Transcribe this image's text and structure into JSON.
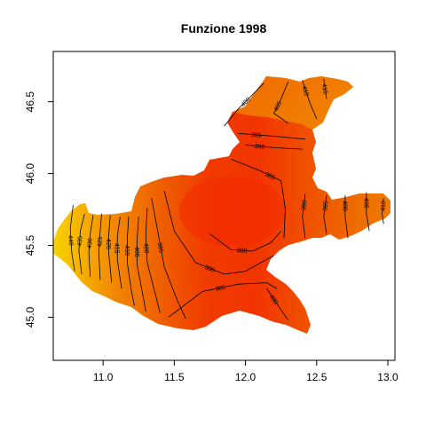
{
  "chart_data": {
    "type": "heatmap",
    "title": "Funzione 1998",
    "xlabel": "",
    "ylabel": "",
    "xlim": [
      10.65,
      13.05
    ],
    "ylim": [
      44.7,
      46.85
    ],
    "x_ticks": [
      "11.0",
      "11.5",
      "12.0",
      "12.5",
      "13.0"
    ],
    "x_tick_values": [
      11.0,
      11.5,
      12.0,
      12.5,
      13.0
    ],
    "y_ticks": [
      "45.0",
      "45.5",
      "46.0",
      "46.5"
    ],
    "y_tick_values": [
      45.0,
      45.5,
      46.0,
      46.5
    ],
    "grid": false,
    "legend": "none",
    "color_scale": {
      "low": "#ff2a00",
      "mid": "#ff8000",
      "high": "#ffd700"
    },
    "value_range": [
      376,
      442
    ],
    "region_colors": [
      "#f7d000",
      "#f5a300",
      "#f18400",
      "#ef6900",
      "#f04e00",
      "#f03a00",
      "#f33000",
      "#f04a00",
      "#ea6a00",
      "#f07a00"
    ],
    "contours": [
      {
        "label": "440",
        "points": [
          [
            10.79,
            45.78
          ],
          [
            10.77,
            45.62
          ],
          [
            10.78,
            45.45
          ],
          [
            10.8,
            45.32
          ]
        ]
      },
      {
        "label": "435",
        "points": [
          [
            10.87,
            45.72
          ],
          [
            10.84,
            45.6
          ],
          [
            10.83,
            45.46
          ],
          [
            10.85,
            45.3
          ]
        ]
      },
      {
        "label": "430",
        "points": [
          [
            10.93,
            45.71
          ],
          [
            10.91,
            45.58
          ],
          [
            10.9,
            45.45
          ],
          [
            10.91,
            45.28
          ]
        ]
      },
      {
        "label": "425",
        "points": [
          [
            10.99,
            45.72
          ],
          [
            10.98,
            45.6
          ],
          [
            10.97,
            45.45
          ],
          [
            10.98,
            45.26
          ]
        ]
      },
      {
        "label": "420",
        "points": [
          [
            11.05,
            45.71
          ],
          [
            11.04,
            45.58
          ],
          [
            11.04,
            45.44
          ],
          [
            11.06,
            45.24
          ]
        ]
      },
      {
        "label": "415",
        "points": [
          [
            11.12,
            45.7
          ],
          [
            11.1,
            45.56
          ],
          [
            11.1,
            45.4
          ],
          [
            11.13,
            45.2
          ]
        ]
      },
      {
        "label": "410",
        "points": [
          [
            11.18,
            45.7
          ],
          [
            11.17,
            45.55
          ],
          [
            11.17,
            45.38
          ],
          [
            11.2,
            45.18
          ],
          [
            11.22,
            45.08
          ]
        ]
      },
      {
        "label": "405",
        "points": [
          [
            11.25,
            45.7
          ],
          [
            11.24,
            45.55
          ],
          [
            11.24,
            45.36
          ],
          [
            11.28,
            45.15
          ],
          [
            11.3,
            45.04
          ]
        ]
      },
      {
        "label": "400",
        "points": [
          [
            11.31,
            45.76
          ],
          [
            11.3,
            45.58
          ],
          [
            11.31,
            45.38
          ],
          [
            11.37,
            45.15
          ],
          [
            11.4,
            45.03
          ]
        ]
      },
      {
        "label": "395",
        "points": [
          [
            11.34,
            45.83
          ],
          [
            11.38,
            45.62
          ],
          [
            11.43,
            45.35
          ],
          [
            11.52,
            45.12
          ],
          [
            11.58,
            44.99
          ]
        ]
      },
      {
        "label": "390",
        "points": [
          [
            11.43,
            45.88
          ],
          [
            11.5,
            45.6
          ],
          [
            11.65,
            45.38
          ],
          [
            11.85,
            45.3
          ],
          [
            12.0,
            45.32
          ],
          [
            12.2,
            45.43
          ]
        ]
      },
      {
        "label": "385",
        "points": [
          [
            11.46,
            45.0
          ],
          [
            11.7,
            45.18
          ],
          [
            11.95,
            45.23
          ],
          [
            12.15,
            45.24
          ],
          [
            12.22,
            45.2
          ]
        ]
      },
      {
        "label": "380",
        "points": [
          [
            11.75,
            45.58
          ],
          [
            11.9,
            45.47
          ],
          [
            12.05,
            45.46
          ],
          [
            12.18,
            45.52
          ],
          [
            12.25,
            45.6
          ]
        ]
      },
      {
        "label": "385",
        "points": [
          [
            11.9,
            46.1
          ],
          [
            12.1,
            46.02
          ],
          [
            12.25,
            45.95
          ],
          [
            12.28,
            45.75
          ],
          [
            12.27,
            45.55
          ]
        ]
      },
      {
        "label": "390",
        "points": [
          [
            12.0,
            46.2
          ],
          [
            12.2,
            46.18
          ],
          [
            12.4,
            46.17
          ]
        ]
      },
      {
        "label": "395",
        "points": [
          [
            11.95,
            46.28
          ],
          [
            12.2,
            46.26
          ],
          [
            12.42,
            46.24
          ]
        ]
      },
      {
        "label": "400",
        "points": [
          [
            11.85,
            46.33
          ],
          [
            11.95,
            46.45
          ],
          [
            12.05,
            46.55
          ],
          [
            12.13,
            46.63
          ]
        ]
      },
      {
        "label": "405",
        "points": [
          [
            12.3,
            46.64
          ],
          [
            12.25,
            46.52
          ],
          [
            12.2,
            46.42
          ],
          [
            12.3,
            46.35
          ]
        ]
      },
      {
        "label": "410",
        "points": [
          [
            12.4,
            46.65
          ],
          [
            12.45,
            46.5
          ],
          [
            12.5,
            46.38
          ]
        ]
      },
      {
        "label": "415",
        "points": [
          [
            12.55,
            46.66
          ],
          [
            12.57,
            46.52
          ]
        ]
      },
      {
        "label": "390",
        "points": [
          [
            12.42,
            45.86
          ],
          [
            12.4,
            45.7
          ],
          [
            12.42,
            45.55
          ]
        ]
      },
      {
        "label": "395",
        "points": [
          [
            12.57,
            45.85
          ],
          [
            12.55,
            45.7
          ],
          [
            12.57,
            45.58
          ]
        ]
      },
      {
        "label": "400",
        "points": [
          [
            12.7,
            45.85
          ],
          [
            12.7,
            45.7
          ],
          [
            12.72,
            45.55
          ]
        ]
      },
      {
        "label": "405",
        "points": [
          [
            12.85,
            45.87
          ],
          [
            12.85,
            45.72
          ],
          [
            12.87,
            45.6
          ]
        ]
      },
      {
        "label": "410",
        "points": [
          [
            12.97,
            45.83
          ],
          [
            12.96,
            45.72
          ],
          [
            12.97,
            45.65
          ]
        ]
      },
      {
        "label": "400",
        "points": [
          [
            12.15,
            45.2
          ],
          [
            12.25,
            45.05
          ],
          [
            12.3,
            44.98
          ]
        ]
      }
    ]
  }
}
